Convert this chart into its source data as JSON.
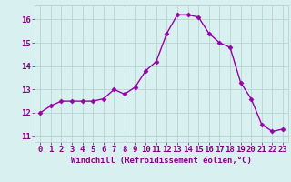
{
  "x": [
    0,
    1,
    2,
    3,
    4,
    5,
    6,
    7,
    8,
    9,
    10,
    11,
    12,
    13,
    14,
    15,
    16,
    17,
    18,
    19,
    20,
    21,
    22,
    23
  ],
  "y": [
    12.0,
    12.3,
    12.5,
    12.5,
    12.5,
    12.5,
    12.6,
    13.0,
    12.8,
    13.1,
    13.8,
    14.2,
    15.4,
    16.2,
    16.2,
    16.1,
    15.4,
    15.0,
    14.8,
    13.3,
    12.6,
    11.5,
    11.2,
    11.3
  ],
  "line_color": "#9900aa",
  "marker": "D",
  "markersize": 2.5,
  "linewidth": 1.0,
  "xlabel": "Windchill (Refroidissement éolien,°C)",
  "xlabel_fontsize": 6.5,
  "xlim": [
    -0.5,
    23.5
  ],
  "ylim": [
    10.75,
    16.6
  ],
  "yticks": [
    11,
    12,
    13,
    14,
    15,
    16
  ],
  "xticks": [
    0,
    1,
    2,
    3,
    4,
    5,
    6,
    7,
    8,
    9,
    10,
    11,
    12,
    13,
    14,
    15,
    16,
    17,
    18,
    19,
    20,
    21,
    22,
    23
  ],
  "grid_color": "#b0d0d0",
  "bg_color": "#d8f0f0",
  "tick_fontsize": 6.5,
  "tick_color": "#880088",
  "label_color": "#880088"
}
